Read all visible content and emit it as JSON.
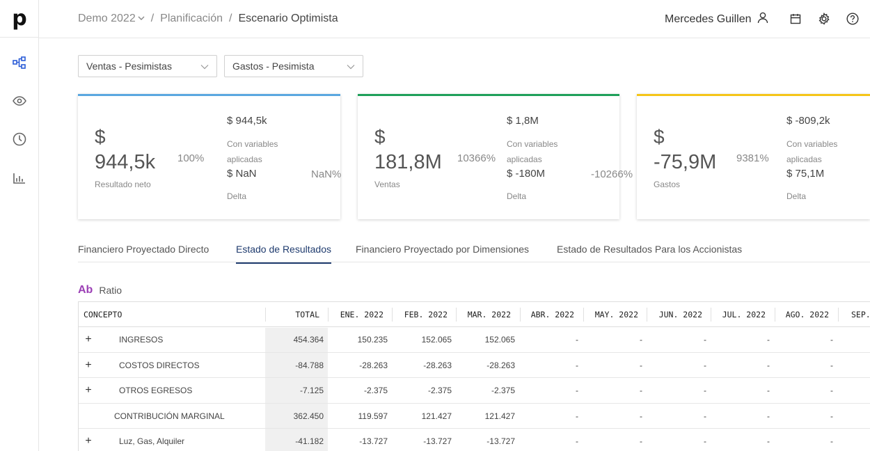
{
  "app": {
    "logo": "p"
  },
  "sidebar": {
    "items": [
      "diagram-icon",
      "eye-icon",
      "clock-icon",
      "bar-chart-icon"
    ]
  },
  "breadcrumb": {
    "project": "Demo 2022",
    "section": "Planificación",
    "current": "Escenario Optimista"
  },
  "header": {
    "user_name": "Mercedes Guillen"
  },
  "filters": {
    "sales": "Ventas - Pesimistas",
    "expenses": "Gastos - Pesimista"
  },
  "cards": [
    {
      "currency": "$",
      "value": "944,5k",
      "label": "Resultado neto",
      "pct": "100%",
      "variant_value": "$ 944,5k",
      "variant_label": "Con variables aplicadas",
      "delta_value": "$ NaN",
      "delta_pct": "NaN%",
      "delta_label": "Delta",
      "color": "#5aa7e0"
    },
    {
      "currency": "$",
      "value": "181,8M",
      "label": "Ventas",
      "pct": "10366%",
      "variant_value": "$ 1,8M",
      "variant_label": "Con variables aplicadas",
      "delta_value": "$ -180M",
      "delta_pct": "-10266%",
      "delta_label": "Delta",
      "color": "#1fa05a"
    },
    {
      "currency": "$",
      "value": "-75,9M",
      "label": "Gastos",
      "pct": "9381%",
      "variant_value": "$ -809,2k",
      "variant_label": "Con variables aplicadas",
      "delta_value": "$ 75,1M",
      "delta_pct": "",
      "delta_label": "Delta",
      "color": "#f5c518"
    }
  ],
  "tabs": [
    "Financiero Proyectado Directo",
    "Estado de Resultados",
    "Financiero Proyectado por Dimensiones",
    "Estado de Resultados Para los Accionistas"
  ],
  "ratio": {
    "icon_text": "Ab",
    "label": "Ratio"
  },
  "table": {
    "columns": [
      "CONCEPTO",
      "TOTAL",
      "ENE. 2022",
      "FEB. 2022",
      "MAR. 2022",
      "ABR. 2022",
      "MAY. 2022",
      "JUN. 2022",
      "JUL. 2022",
      "AGO. 2022",
      "SEP."
    ],
    "rows": [
      {
        "expandable": true,
        "concept": "INGRESOS",
        "values": [
          "454.364",
          "150.235",
          "152.065",
          "152.065",
          "-",
          "-",
          "-",
          "-",
          "-",
          ""
        ]
      },
      {
        "expandable": true,
        "concept": "COSTOS DIRECTOS",
        "values": [
          "-84.788",
          "-28.263",
          "-28.263",
          "-28.263",
          "-",
          "-",
          "-",
          "-",
          "-",
          ""
        ]
      },
      {
        "expandable": true,
        "concept": "OTROS EGRESOS",
        "values": [
          "-7.125",
          "-2.375",
          "-2.375",
          "-2.375",
          "-",
          "-",
          "-",
          "-",
          "-",
          ""
        ]
      },
      {
        "expandable": false,
        "concept": "CONTRIBUCIÓN MARGINAL",
        "values": [
          "362.450",
          "119.597",
          "121.427",
          "121.427",
          "-",
          "-",
          "-",
          "-",
          "-",
          ""
        ]
      },
      {
        "expandable": true,
        "concept": "Luz, Gas, Alquiler",
        "values": [
          "-41.182",
          "-13.727",
          "-13.727",
          "-13.727",
          "-",
          "-",
          "-",
          "-",
          "-",
          ""
        ]
      }
    ]
  }
}
